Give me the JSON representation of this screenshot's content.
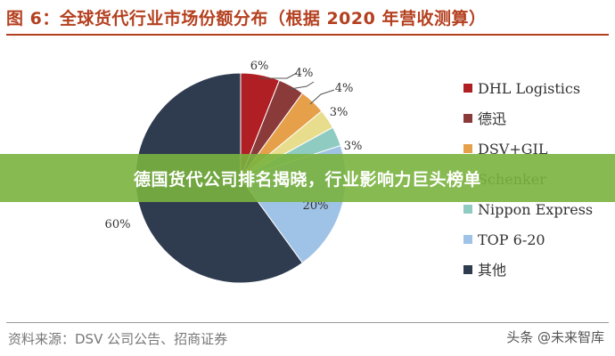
{
  "header": {
    "title": "图 6：全球货代行业市场份额分布（根据 2020 年营收测算）"
  },
  "banner": {
    "text": "德国货代公司排名揭晓，行业影响力巨头榜单"
  },
  "footer": {
    "source": "资料来源：DSV 公司公告、招商证券",
    "watermark": "头条 @未来智库"
  },
  "colors": {
    "title": "#b4401f",
    "banner": "#7ab23e"
  },
  "chart_data": {
    "type": "pie",
    "title": "",
    "slices": [
      {
        "label": "DHL Logistics",
        "value": 6,
        "display": "6%",
        "color": "#b01f24"
      },
      {
        "label": "德迅",
        "value": 4,
        "display": "4%",
        "color": "#8b3a3a"
      },
      {
        "label": "DSV+GIL",
        "value": 4,
        "display": "4%",
        "color": "#e6a04a"
      },
      {
        "label": "Schenker",
        "value": 3,
        "display": "3%",
        "color": "#e8dd8c"
      },
      {
        "label": "Nippon Express",
        "value": 3,
        "display": "3%",
        "color": "#8fcbc0"
      },
      {
        "label": "TOP 6-20",
        "value": 20,
        "display": "20%",
        "color": "#9fc3e6"
      },
      {
        "label": "其他",
        "value": 60,
        "display": "60%",
        "color": "#2f3b4f"
      }
    ],
    "legend_position": "right"
  }
}
